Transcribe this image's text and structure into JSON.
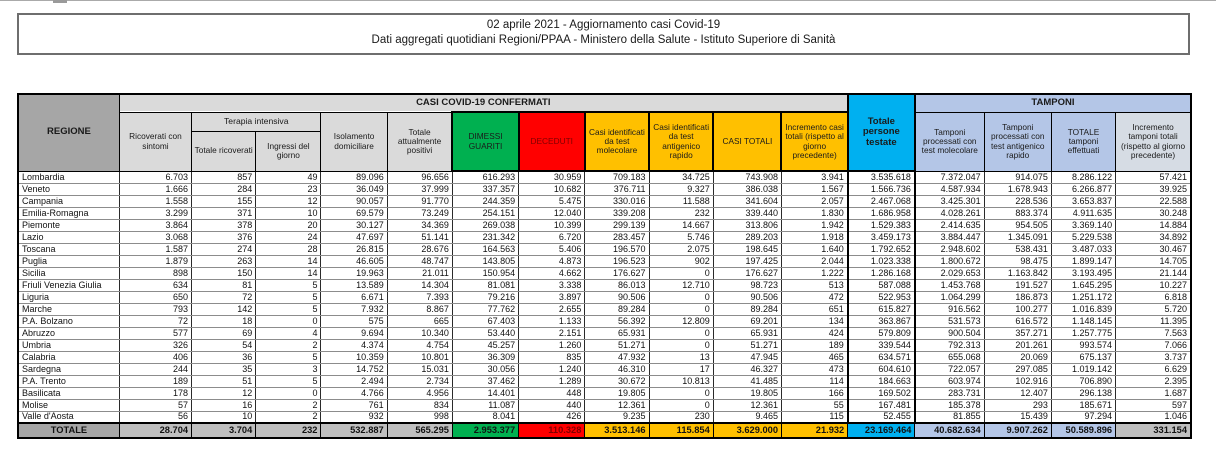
{
  "banner": {
    "line1": "02 aprile 2021 - Aggiornamento casi Covid-19",
    "line2": "Dati aggregati quotidiani Regioni/PPAA - Ministero della Salute - Istituto Superiore di Sanità"
  },
  "colors": {
    "green_recovered": "#00b050",
    "red_deceased": "#ff0000",
    "deceased_text": "#7f0000",
    "gold_cases": "#ffc000",
    "cyan_tested": "#00b0f0",
    "lightblue_swabs": "#b4c6e7",
    "bluegray_increment": "#d6dce4",
    "gray_header": "#d9d9d9",
    "gray_region": "#a6a6a6",
    "gray_totals": "#bfbfbf"
  },
  "table": {
    "headers": {
      "regione": "REGIONE",
      "group_confirmed": "CASI COVID-19 CONFERMATI",
      "group_tamponi": "TAMPONI",
      "terapia_intensiva": "Terapia intensiva",
      "cols": {
        "ricoverati": "Ricoverati con sintomi",
        "totale_ricoverati": "Totale ricoverati",
        "ingressi": "Ingressi del giorno",
        "isolamento": "Isolamento domiciliare",
        "attualmente_positivi": "Totale attualmente positivi",
        "dimessi": "DIMESSI GUARITI",
        "deceduti": "DECEDUTI",
        "casi_molecolare": "Casi identificati da test molecolare",
        "casi_antigenico": "Casi identificati da test antigenico rapido",
        "casi_totali": "CASI TOTALI",
        "incremento_casi": "Incremento casi totali (rispetto al giorno precedente)",
        "persone_testate": "Totale persone testate",
        "tamponi_molecolare": "Tamponi processati con test molecolare",
        "tamponi_antigenico": "Tamponi processati con test antigenico rapido",
        "totale_tamponi": "TOTALE tamponi effettuati",
        "incremento_tamponi": "Incremento tamponi totali (rispetto al giorno precedente)"
      }
    },
    "rows": [
      {
        "region": "Lombardia",
        "values": [
          "6.703",
          "857",
          "49",
          "89.096",
          "96.656",
          "616.293",
          "30.959",
          "709.183",
          "34.725",
          "743.908",
          "3.941",
          "3.535.618",
          "7.372.047",
          "914.075",
          "8.286.122",
          "57.421"
        ]
      },
      {
        "region": "Veneto",
        "values": [
          "1.666",
          "284",
          "23",
          "36.049",
          "37.999",
          "337.357",
          "10.682",
          "376.711",
          "9.327",
          "386.038",
          "1.567",
          "1.566.736",
          "4.587.934",
          "1.678.943",
          "6.266.877",
          "39.925"
        ]
      },
      {
        "region": "Campania",
        "values": [
          "1.558",
          "155",
          "12",
          "90.057",
          "91.770",
          "244.359",
          "5.475",
          "330.016",
          "11.588",
          "341.604",
          "2.057",
          "2.467.068",
          "3.425.301",
          "228.536",
          "3.653.837",
          "22.588"
        ]
      },
      {
        "region": "Emilia-Romagna",
        "values": [
          "3.299",
          "371",
          "10",
          "69.579",
          "73.249",
          "254.151",
          "12.040",
          "339.208",
          "232",
          "339.440",
          "1.830",
          "1.686.958",
          "4.028.261",
          "883.374",
          "4.911.635",
          "30.248"
        ]
      },
      {
        "region": "Piemonte",
        "values": [
          "3.864",
          "378",
          "20",
          "30.127",
          "34.369",
          "269.038",
          "10.399",
          "299.139",
          "14.667",
          "313.806",
          "1.942",
          "1.529.383",
          "2.414.635",
          "954.505",
          "3.369.140",
          "14.884"
        ]
      },
      {
        "region": "Lazio",
        "values": [
          "3.068",
          "376",
          "24",
          "47.697",
          "51.141",
          "231.342",
          "6.720",
          "283.457",
          "5.746",
          "289.203",
          "1.918",
          "3.459.173",
          "3.884.447",
          "1.345.091",
          "5.229.538",
          "34.892"
        ]
      },
      {
        "region": "Toscana",
        "values": [
          "1.587",
          "274",
          "28",
          "26.815",
          "28.676",
          "164.563",
          "5.406",
          "196.570",
          "2.075",
          "198.645",
          "1.640",
          "1.792.652",
          "2.948.602",
          "538.431",
          "3.487.033",
          "30.467"
        ]
      },
      {
        "region": "Puglia",
        "values": [
          "1.879",
          "263",
          "14",
          "46.605",
          "48.747",
          "143.805",
          "4.873",
          "196.523",
          "902",
          "197.425",
          "2.044",
          "1.023.338",
          "1.800.672",
          "98.475",
          "1.899.147",
          "14.705"
        ]
      },
      {
        "region": "Sicilia",
        "values": [
          "898",
          "150",
          "14",
          "19.963",
          "21.011",
          "150.954",
          "4.662",
          "176.627",
          "0",
          "176.627",
          "1.222",
          "1.286.168",
          "2.029.653",
          "1.163.842",
          "3.193.495",
          "21.144"
        ]
      },
      {
        "region": "Friuli Venezia Giulia",
        "values": [
          "634",
          "81",
          "5",
          "13.589",
          "14.304",
          "81.081",
          "3.338",
          "86.013",
          "12.710",
          "98.723",
          "513",
          "587.088",
          "1.453.768",
          "191.527",
          "1.645.295",
          "10.227"
        ]
      },
      {
        "region": "Liguria",
        "values": [
          "650",
          "72",
          "5",
          "6.671",
          "7.393",
          "79.216",
          "3.897",
          "90.506",
          "0",
          "90.506",
          "472",
          "522.953",
          "1.064.299",
          "186.873",
          "1.251.172",
          "6.818"
        ]
      },
      {
        "region": "Marche",
        "values": [
          "793",
          "142",
          "5",
          "7.932",
          "8.867",
          "77.762",
          "2.655",
          "89.284",
          "0",
          "89.284",
          "651",
          "615.827",
          "916.562",
          "100.277",
          "1.016.839",
          "5.720"
        ]
      },
      {
        "region": "P.A. Bolzano",
        "values": [
          "72",
          "18",
          "0",
          "575",
          "665",
          "67.403",
          "1.133",
          "56.392",
          "12.809",
          "69.201",
          "134",
          "363.867",
          "531.573",
          "616.572",
          "1.148.145",
          "11.395"
        ]
      },
      {
        "region": "Abruzzo",
        "values": [
          "577",
          "69",
          "4",
          "9.694",
          "10.340",
          "53.440",
          "2.151",
          "65.931",
          "0",
          "65.931",
          "424",
          "579.809",
          "900.504",
          "357.271",
          "1.257.775",
          "7.563"
        ]
      },
      {
        "region": "Umbria",
        "values": [
          "326",
          "54",
          "2",
          "4.374",
          "4.754",
          "45.257",
          "1.260",
          "51.271",
          "0",
          "51.271",
          "189",
          "339.544",
          "792.313",
          "201.261",
          "993.574",
          "7.066"
        ]
      },
      {
        "region": "Calabria",
        "values": [
          "406",
          "36",
          "5",
          "10.359",
          "10.801",
          "36.309",
          "835",
          "47.932",
          "13",
          "47.945",
          "465",
          "634.571",
          "655.068",
          "20.069",
          "675.137",
          "3.737"
        ]
      },
      {
        "region": "Sardegna",
        "values": [
          "244",
          "35",
          "3",
          "14.752",
          "15.031",
          "30.056",
          "1.240",
          "46.310",
          "17",
          "46.327",
          "473",
          "604.610",
          "722.057",
          "297.085",
          "1.019.142",
          "6.629"
        ]
      },
      {
        "region": "P.A. Trento",
        "values": [
          "189",
          "51",
          "5",
          "2.494",
          "2.734",
          "37.462",
          "1.289",
          "30.672",
          "10.813",
          "41.485",
          "114",
          "184.663",
          "603.974",
          "102.916",
          "706.890",
          "2.395"
        ]
      },
      {
        "region": "Basilicata",
        "values": [
          "178",
          "12",
          "0",
          "4.766",
          "4.956",
          "14.401",
          "448",
          "19.805",
          "0",
          "19.805",
          "166",
          "169.502",
          "283.731",
          "12.407",
          "296.138",
          "1.687"
        ]
      },
      {
        "region": "Molise",
        "values": [
          "57",
          "16",
          "2",
          "761",
          "834",
          "11.087",
          "440",
          "12.361",
          "0",
          "12.361",
          "55",
          "167.481",
          "185.378",
          "293",
          "185.671",
          "597"
        ]
      },
      {
        "region": "Valle d'Aosta",
        "values": [
          "56",
          "10",
          "2",
          "932",
          "998",
          "8.041",
          "426",
          "9.235",
          "230",
          "9.465",
          "115",
          "52.455",
          "81.855",
          "15.439",
          "97.294",
          "1.046"
        ]
      }
    ],
    "total_row": {
      "region": "TOTALE",
      "values": [
        "28.704",
        "3.704",
        "232",
        "532.887",
        "565.295",
        "2.953.377",
        "110.328",
        "3.513.146",
        "115.854",
        "3.629.000",
        "21.932",
        "23.169.464",
        "40.682.634",
        "9.907.262",
        "50.589.896",
        "331.154"
      ]
    }
  }
}
